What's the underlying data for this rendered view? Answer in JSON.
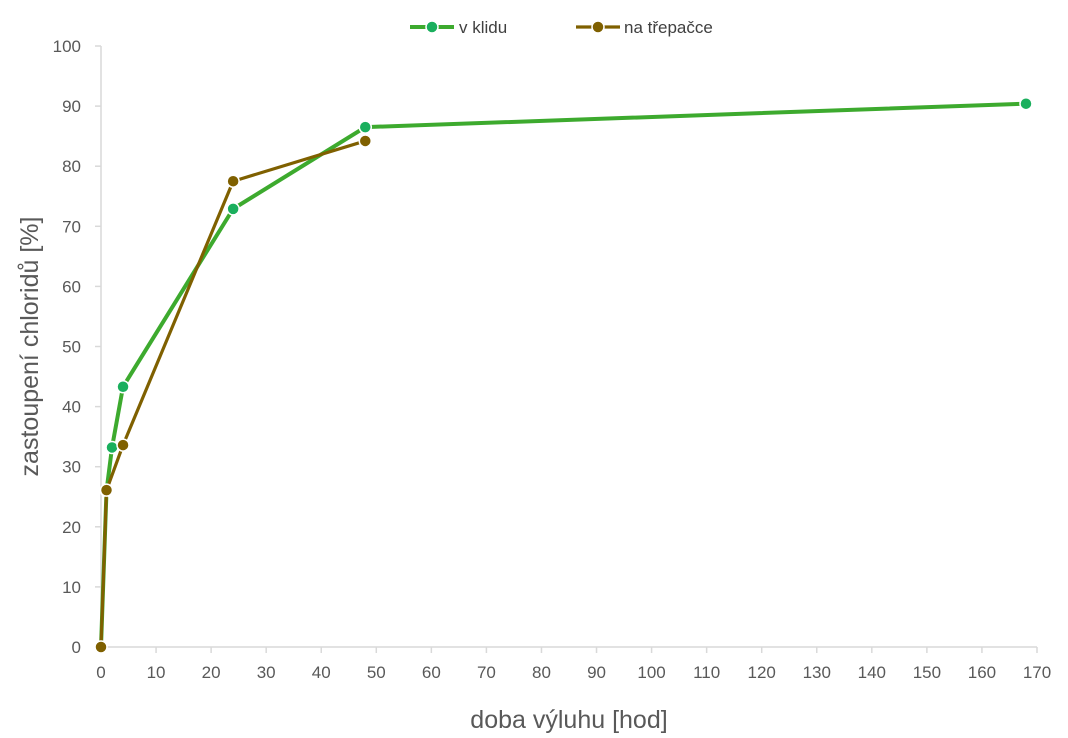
{
  "chart_data": {
    "type": "line",
    "title": "",
    "xlabel": "doba výluhu [hod]",
    "ylabel": "zastoupení chloridů [%]",
    "xlim": [
      0,
      170
    ],
    "ylim": [
      0,
      100
    ],
    "x_ticks": [
      0,
      10,
      20,
      30,
      40,
      50,
      60,
      70,
      80,
      90,
      100,
      110,
      120,
      130,
      140,
      150,
      160,
      170
    ],
    "y_ticks": [
      0,
      10,
      20,
      30,
      40,
      50,
      60,
      70,
      80,
      90,
      100
    ],
    "grid": false,
    "legend_position": "top",
    "series": [
      {
        "name": "v klidu",
        "color": "#3daa2e",
        "marker_color": "#1aaf5d",
        "points": [
          [
            0,
            0
          ],
          [
            1,
            26
          ],
          [
            2,
            33.2
          ],
          [
            4,
            43.3
          ],
          [
            24,
            72.9
          ],
          [
            48,
            86.5
          ],
          [
            168,
            90.4
          ]
        ]
      },
      {
        "name": "na třepačce",
        "color": "#7f6000",
        "marker_color": "#7f6000",
        "points": [
          [
            0,
            0
          ],
          [
            1,
            26.1
          ],
          [
            4,
            33.6
          ],
          [
            24,
            77.5
          ],
          [
            48,
            84.2
          ]
        ]
      }
    ]
  }
}
